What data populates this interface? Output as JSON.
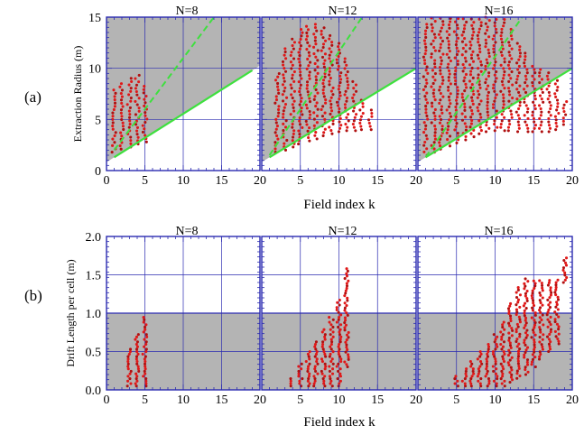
{
  "figure": {
    "row_labels": [
      "(a)",
      "(b)"
    ]
  },
  "colors": {
    "frame": "#2a2ab0",
    "grid": "#2a2ab0",
    "shading": "#b4b4b4",
    "points": "#e01818",
    "points_dark": "#b01010",
    "boundary_line": "#3ee03e",
    "background": "#ffffff"
  },
  "chart_data": [
    {
      "id": "a",
      "type": "scatter",
      "ylabel": "Extraction Radius (m)",
      "xlabel": "Field index k",
      "xlim": [
        0,
        20
      ],
      "ylim": [
        0,
        15
      ],
      "x_ticks": [
        0,
        5,
        10,
        15,
        20
      ],
      "x_tick_labels": [
        [
          "0",
          "5",
          "10",
          "15",
          "20"
        ],
        [
          "5",
          "10",
          "15",
          "20"
        ],
        [
          "5",
          "10",
          "15",
          "20"
        ]
      ],
      "y_ticks": [
        0,
        5,
        10,
        15
      ],
      "y_tick_labels": [
        "0",
        "5",
        "10",
        "15"
      ],
      "grid": true,
      "panels": [
        {
          "title": "N=8",
          "lower_line": {
            "x": [
              1,
              19
            ],
            "y": [
              1.3,
              9.8
            ]
          },
          "upper_dashed_line": {
            "x": [
              1,
              14
            ],
            "y": [
              2.0,
              15
            ]
          },
          "point_columns": [
            {
              "k": 1,
              "ymin": 1.8,
              "ymax": 8.0
            },
            {
              "k": 2,
              "ymin": 2.1,
              "ymax": 8.8
            },
            {
              "k": 3,
              "ymin": 2.3,
              "ymax": 9.3
            },
            {
              "k": 4,
              "ymin": 2.6,
              "ymax": 9.5
            },
            {
              "k": 5,
              "ymin": 2.8,
              "ymax": 8.5
            }
          ]
        },
        {
          "title": "N=12",
          "lower_line": {
            "x": [
              1,
              20
            ],
            "y": [
              1.3,
              10.0
            ]
          },
          "upper_dashed_line": {
            "x": [
              1,
              13
            ],
            "y": [
              1.5,
              15
            ]
          },
          "point_columns": [
            {
              "k": 2,
              "ymin": 1.8,
              "ymax": 9.5
            },
            {
              "k": 3,
              "ymin": 2.0,
              "ymax": 12.0
            },
            {
              "k": 4,
              "ymin": 2.3,
              "ymax": 13.0
            },
            {
              "k": 5,
              "ymin": 2.6,
              "ymax": 13.8
            },
            {
              "k": 6,
              "ymin": 2.9,
              "ymax": 14.2
            },
            {
              "k": 7,
              "ymin": 3.1,
              "ymax": 14.5
            },
            {
              "k": 8,
              "ymin": 3.4,
              "ymax": 14.2
            },
            {
              "k": 9,
              "ymin": 3.6,
              "ymax": 13.5
            },
            {
              "k": 10,
              "ymin": 3.8,
              "ymax": 12.5
            },
            {
              "k": 11,
              "ymin": 3.9,
              "ymax": 11.0
            },
            {
              "k": 12,
              "ymin": 3.9,
              "ymax": 9.0
            },
            {
              "k": 13,
              "ymin": 4.0,
              "ymax": 7.0
            },
            {
              "k": 14,
              "ymin": 4.0,
              "ymax": 6.0
            }
          ]
        },
        {
          "title": "N=16",
          "lower_line": {
            "x": [
              1,
              20
            ],
            "y": [
              1.3,
              10.0
            ]
          },
          "upper_dashed_line": {
            "x": [
              1,
              13.5
            ],
            "y": [
              1.3,
              15
            ]
          },
          "point_columns": [
            {
              "k": 1,
              "ymin": 1.5,
              "ymax": 14.5
            },
            {
              "k": 2,
              "ymin": 1.8,
              "ymax": 15.0
            },
            {
              "k": 3,
              "ymin": 2.1,
              "ymax": 15.0
            },
            {
              "k": 4,
              "ymin": 2.4,
              "ymax": 15.0
            },
            {
              "k": 5,
              "ymin": 2.7,
              "ymax": 15.0
            },
            {
              "k": 6,
              "ymin": 3.0,
              "ymax": 15.0
            },
            {
              "k": 7,
              "ymin": 3.3,
              "ymax": 15.0
            },
            {
              "k": 8,
              "ymin": 3.6,
              "ymax": 15.0
            },
            {
              "k": 9,
              "ymin": 3.8,
              "ymax": 15.0
            },
            {
              "k": 10,
              "ymin": 3.9,
              "ymax": 15.0
            },
            {
              "k": 11,
              "ymin": 3.9,
              "ymax": 15.0
            },
            {
              "k": 12,
              "ymin": 3.9,
              "ymax": 14.0
            },
            {
              "k": 13,
              "ymin": 3.8,
              "ymax": 12.5
            },
            {
              "k": 14,
              "ymin": 3.8,
              "ymax": 11.5
            },
            {
              "k": 15,
              "ymin": 3.8,
              "ymax": 10.5
            },
            {
              "k": 16,
              "ymin": 3.8,
              "ymax": 10.0
            },
            {
              "k": 17,
              "ymin": 3.8,
              "ymax": 9.8
            },
            {
              "k": 18,
              "ymin": 4.0,
              "ymax": 9.0
            },
            {
              "k": 19,
              "ymin": 4.5,
              "ymax": 7.0
            }
          ]
        }
      ]
    },
    {
      "id": "b",
      "type": "scatter",
      "ylabel": "Drift Length per cell (m)",
      "xlabel": "Field index k",
      "xlim": [
        0,
        20
      ],
      "ylim": [
        0,
        2.0
      ],
      "x_ticks": [
        0,
        5,
        10,
        15,
        20
      ],
      "x_tick_labels": [
        [
          "0",
          "5",
          "10",
          "15",
          "20"
        ],
        [
          "5",
          "10",
          "15",
          "20"
        ],
        [
          "5",
          "10",
          "15",
          "20"
        ]
      ],
      "y_ticks": [
        0,
        0.5,
        1.0,
        1.5,
        2.0
      ],
      "y_tick_labels": [
        "0.0",
        "0.5",
        "1.0",
        "1.5",
        "2.0"
      ],
      "shaded_band": [
        0,
        1.0
      ],
      "grid": true,
      "panels": [
        {
          "title": "N=8",
          "point_columns": [
            {
              "k": 3,
              "ymin": 0.05,
              "ymax": 0.55
            },
            {
              "k": 4,
              "ymin": 0.05,
              "ymax": 0.75
            },
            {
              "k": 5,
              "ymin": 0.05,
              "ymax": 0.95
            }
          ]
        },
        {
          "title": "N=12",
          "point_columns": [
            {
              "k": 4,
              "ymin": 0.05,
              "ymax": 0.15
            },
            {
              "k": 5,
              "ymin": 0.05,
              "ymax": 0.35
            },
            {
              "k": 6,
              "ymin": 0.05,
              "ymax": 0.5
            },
            {
              "k": 7,
              "ymin": 0.05,
              "ymax": 0.65
            },
            {
              "k": 8,
              "ymin": 0.05,
              "ymax": 0.8
            },
            {
              "k": 9,
              "ymin": 0.05,
              "ymax": 0.95
            },
            {
              "k": 10,
              "ymin": 0.05,
              "ymax": 1.2
            },
            {
              "k": 11,
              "ymin": 0.3,
              "ymax": 1.6
            }
          ]
        },
        {
          "title": "N=16",
          "point_columns": [
            {
              "k": 5,
              "ymin": 0.05,
              "ymax": 0.2
            },
            {
              "k": 6,
              "ymin": 0.05,
              "ymax": 0.3
            },
            {
              "k": 7,
              "ymin": 0.05,
              "ymax": 0.4
            },
            {
              "k": 8,
              "ymin": 0.05,
              "ymax": 0.5
            },
            {
              "k": 9,
              "ymin": 0.05,
              "ymax": 0.6
            },
            {
              "k": 10,
              "ymin": 0.05,
              "ymax": 0.75
            },
            {
              "k": 11,
              "ymin": 0.05,
              "ymax": 0.9
            },
            {
              "k": 12,
              "ymin": 0.1,
              "ymax": 1.15
            },
            {
              "k": 13,
              "ymin": 0.15,
              "ymax": 1.35
            },
            {
              "k": 14,
              "ymin": 0.2,
              "ymax": 1.45
            },
            {
              "k": 15,
              "ymin": 0.3,
              "ymax": 1.45
            },
            {
              "k": 16,
              "ymin": 0.4,
              "ymax": 1.45
            },
            {
              "k": 17,
              "ymin": 0.5,
              "ymax": 1.45
            },
            {
              "k": 18,
              "ymin": 0.6,
              "ymax": 1.45
            },
            {
              "k": 19,
              "ymin": 1.4,
              "ymax": 1.75
            }
          ]
        }
      ]
    }
  ]
}
